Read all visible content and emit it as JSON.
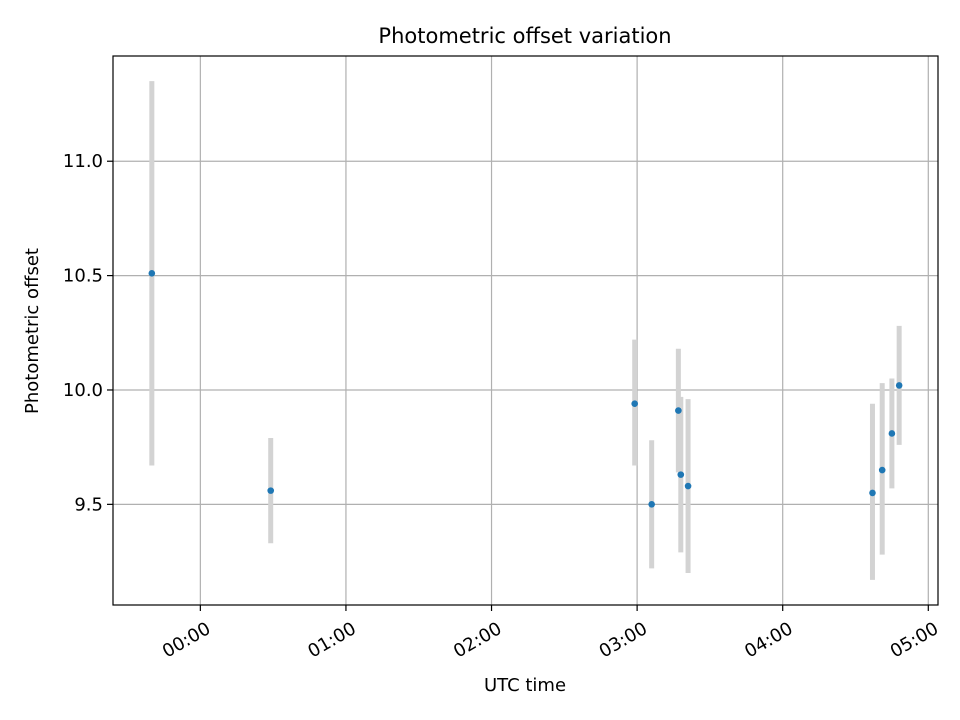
{
  "chart_data": {
    "type": "scatter",
    "title": "Photometric offset variation",
    "xlabel": "UTC time",
    "ylabel": "Photometric offset",
    "x_tick_labels": [
      "00:00",
      "01:00",
      "02:00",
      "03:00",
      "04:00",
      "05:00"
    ],
    "y_tick_labels": [
      "9.5",
      "10.0",
      "10.5",
      "11.0"
    ],
    "y_ticks": [
      9.5,
      10.0,
      10.5,
      11.0
    ],
    "xlim": [
      "23:24",
      "05:04"
    ],
    "ylim": [
      9.06,
      11.46
    ],
    "grid": true,
    "error_bars": true,
    "series": [
      {
        "points": [
          {
            "x": "23:40",
            "y": 10.51,
            "yerr": [
              9.67,
              11.35
            ]
          },
          {
            "x": "00:29",
            "y": 9.56,
            "yerr": [
              9.33,
              9.79
            ]
          },
          {
            "x": "02:59",
            "y": 9.94,
            "yerr": [
              9.67,
              10.22
            ]
          },
          {
            "x": "03:06",
            "y": 9.5,
            "yerr": [
              9.22,
              9.78
            ]
          },
          {
            "x": "03:17",
            "y": 9.91,
            "yerr": [
              9.64,
              10.18
            ]
          },
          {
            "x": "03:18",
            "y": 9.63,
            "yerr": [
              9.29,
              9.97
            ]
          },
          {
            "x": "03:21",
            "y": 9.58,
            "yerr": [
              9.2,
              9.96
            ]
          },
          {
            "x": "04:37",
            "y": 9.55,
            "yerr": [
              9.17,
              9.94
            ]
          },
          {
            "x": "04:41",
            "y": 9.65,
            "yerr": [
              9.28,
              10.03
            ]
          },
          {
            "x": "04:45",
            "y": 9.81,
            "yerr": [
              9.57,
              10.05
            ]
          },
          {
            "x": "04:48",
            "y": 10.02,
            "yerr": [
              9.76,
              10.28
            ]
          }
        ]
      }
    ]
  },
  "colors": {
    "marker": "#1f77b4",
    "errorbar": "#d3d3d3",
    "grid": "#b0b0b0",
    "axes": "#000000"
  }
}
